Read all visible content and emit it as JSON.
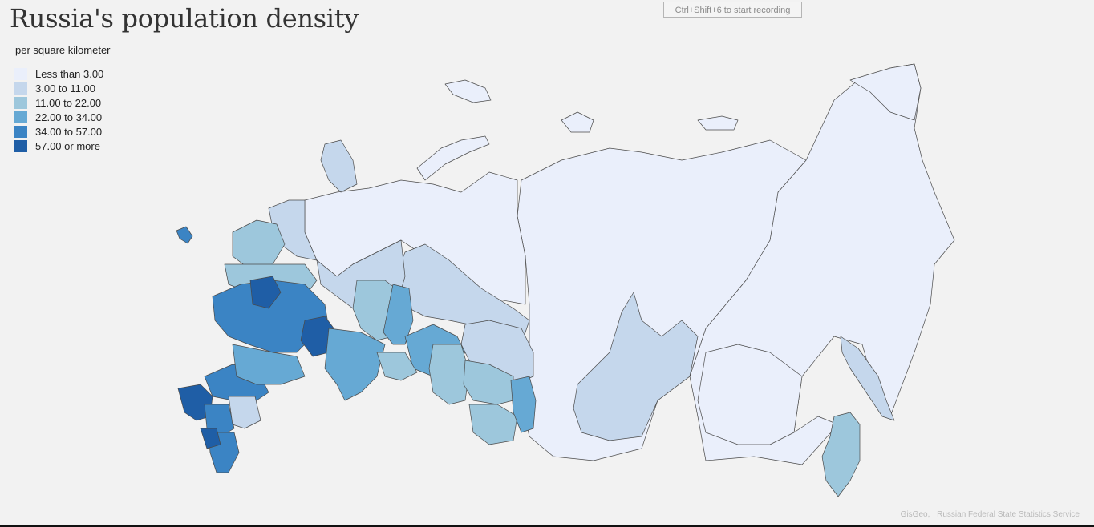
{
  "title": "Russia's population density",
  "subtitle": "per square kilometer",
  "recording_hint": "Ctrl+Shift+6 to start recording",
  "legend": [
    {
      "label": "Less than 3.00",
      "color": "#eaeffb"
    },
    {
      "label": "3.00 to 11.00",
      "color": "#c5d7ec"
    },
    {
      "label": "11.00 to 22.00",
      "color": "#9dc7dc"
    },
    {
      "label": "22.00 to 34.00",
      "color": "#66a9d4"
    },
    {
      "label": "34.00 to 57.00",
      "color": "#3b84c4"
    },
    {
      "label": "57.00 or more",
      "color": "#1f5ea6"
    }
  ],
  "credits": {
    "source1": "GisGeo,",
    "source2": "Russian Federal State Statistics Service"
  }
}
